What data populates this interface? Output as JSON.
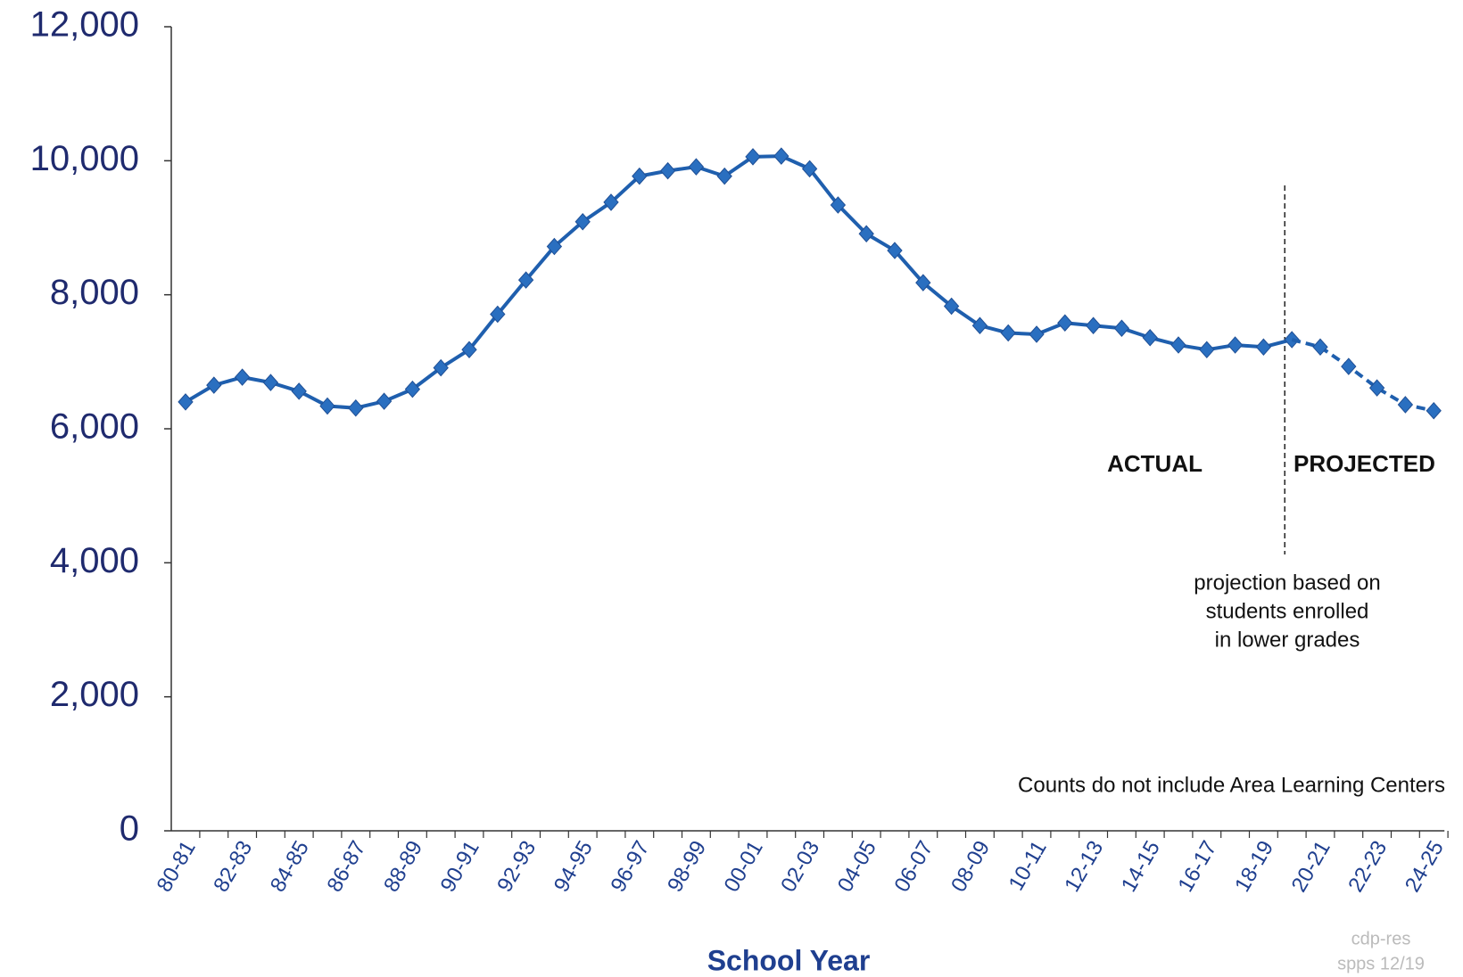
{
  "chart_data": {
    "type": "line",
    "x_label": "School Year",
    "categories": [
      "80-81",
      null,
      "82-83",
      null,
      "84-85",
      null,
      "86-87",
      null,
      "88-89",
      null,
      "90-91",
      null,
      "92-93",
      null,
      "94-95",
      null,
      "96-97",
      null,
      "98-99",
      null,
      "00-01",
      null,
      "02-03",
      null,
      "04-05",
      null,
      "06-07",
      null,
      "08-09",
      null,
      "10-11",
      null,
      "12-13",
      null,
      "14-15",
      null,
      "16-17",
      null,
      "18-19",
      null,
      "20-21",
      null,
      "22-23",
      null,
      "24-25"
    ],
    "series": [
      {
        "name": "ACTUAL",
        "color": "#1f5fae",
        "dashed": false,
        "values": [
          6400,
          6650,
          6770,
          6690,
          6560,
          6340,
          6310,
          6410,
          6590,
          6910,
          7180,
          7710,
          8220,
          8720,
          9090,
          9380,
          9770,
          9850,
          9910,
          9770,
          10060,
          10070,
          9880,
          9340,
          8910,
          8660,
          8180,
          7830,
          7540,
          7430,
          7410,
          7580,
          7540,
          7500,
          7360,
          7250,
          7180,
          7250,
          7220,
          7330,
          null,
          null,
          null,
          null,
          null
        ]
      },
      {
        "name": "PROJECTED",
        "color": "#1f5fae",
        "dashed": true,
        "values": [
          null,
          null,
          null,
          null,
          null,
          null,
          null,
          null,
          null,
          null,
          null,
          null,
          null,
          null,
          null,
          null,
          null,
          null,
          null,
          null,
          null,
          null,
          null,
          null,
          null,
          null,
          null,
          null,
          null,
          null,
          null,
          null,
          null,
          null,
          null,
          null,
          null,
          null,
          null,
          null,
          7220,
          6930,
          6610,
          6360,
          6270
        ]
      }
    ],
    "ylim": [
      0,
      12000
    ],
    "yticks": [
      0,
      {
        "value": 2000,
        "label": "2,000"
      },
      {
        "value": 4000,
        "label": "4,000"
      },
      {
        "value": 6000,
        "label": "6,000"
      },
      {
        "value": 8000,
        "label": "8,000"
      },
      {
        "value": 10000,
        "label": "10,000"
      },
      {
        "value": 12000,
        "label": "12,000"
      }
    ],
    "annotations": [
      "projection based on",
      "students enrolled",
      "in lower grades",
      "Counts do not include Area Learning Centers"
    ],
    "watermark": [
      "cdp-res",
      "spps 12/19"
    ]
  }
}
